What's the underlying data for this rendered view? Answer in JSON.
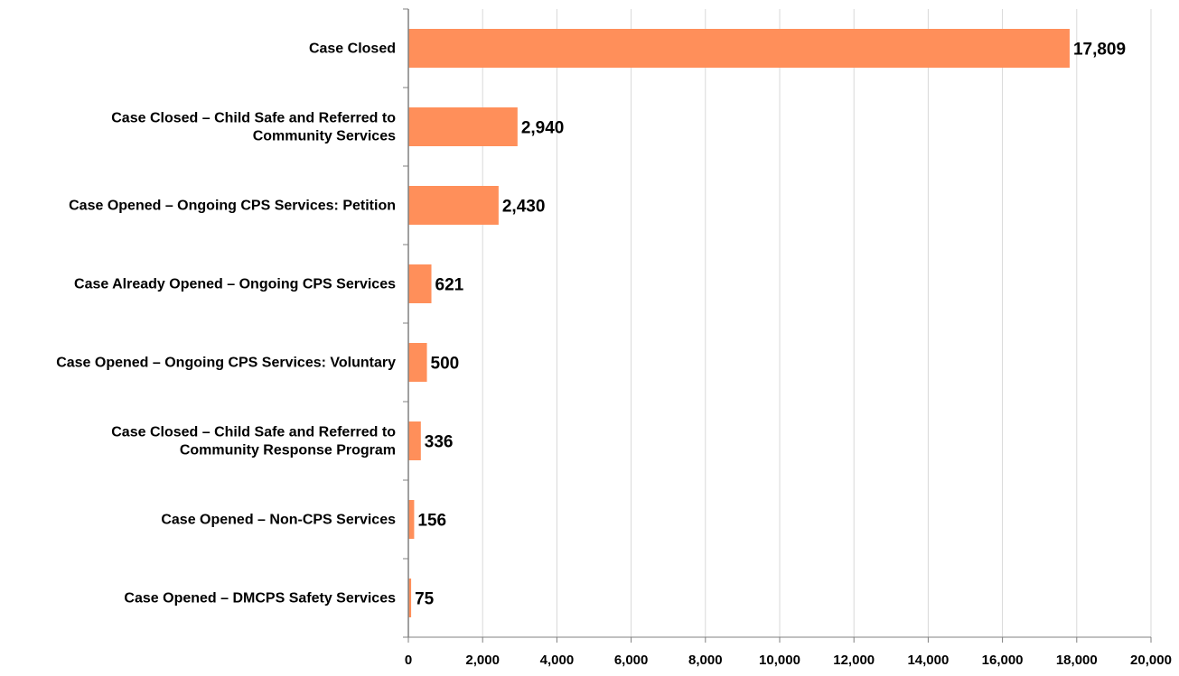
{
  "chart_data": {
    "type": "bar",
    "orientation": "horizontal",
    "categories": [
      [
        "Case Closed"
      ],
      [
        "Case Closed – Child Safe and Referred to",
        "Community Services"
      ],
      [
        "Case Opened – Ongoing CPS Services: Petition"
      ],
      [
        "Case Already Opened – Ongoing CPS Services"
      ],
      [
        "Case Opened – Ongoing CPS Services: Voluntary"
      ],
      [
        "Case Closed – Child Safe and Referred to",
        "Community Response Program"
      ],
      [
        "Case Opened – Non-CPS Services"
      ],
      [
        "Case Opened – DMCPS Safety Services"
      ]
    ],
    "values": [
      17809,
      2940,
      2430,
      621,
      500,
      336,
      156,
      75
    ],
    "value_labels": [
      "17,809",
      "2,940",
      "2,430",
      "621",
      "500",
      "336",
      "156",
      "75"
    ],
    "xlim": [
      0,
      20000
    ],
    "x_ticks": [
      0,
      2000,
      4000,
      6000,
      8000,
      10000,
      12000,
      14000,
      16000,
      18000,
      20000
    ],
    "x_tick_labels": [
      "0",
      "2,000",
      "4,000",
      "6,000",
      "8,000",
      "10,000",
      "12,000",
      "14,000",
      "16,000",
      "18,000",
      "20,000"
    ],
    "grid": "vertical",
    "legend": "none",
    "colors": {
      "bar": "#FF8F5A",
      "grid": "#D9D9D9",
      "axis": "#808080",
      "text": "#000000"
    }
  }
}
